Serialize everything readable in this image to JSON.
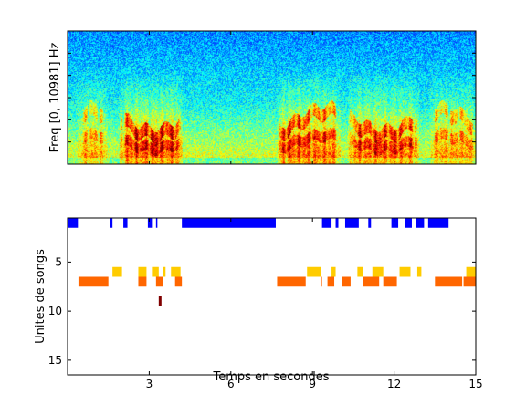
{
  "chart_data": [
    {
      "type": "heatmap",
      "ylabel": "Freq [0, 10981] Hz",
      "xlim": [
        0,
        15
      ],
      "colormap": "jet",
      "energy_bursts": [
        {
          "start": 0.35,
          "end": 1.45,
          "level": 0.55
        },
        {
          "start": 1.9,
          "end": 4.2,
          "level": 0.85
        },
        {
          "start": 7.7,
          "end": 10.0,
          "level": 0.85
        },
        {
          "start": 10.3,
          "end": 12.9,
          "level": 0.75
        },
        {
          "start": 13.3,
          "end": 15.0,
          "level": 0.6
        }
      ]
    },
    {
      "type": "timeline",
      "xlabel": "Temps en secondes",
      "ylabel": "Unites de songs",
      "xlim": [
        0,
        15
      ],
      "ylim": [
        0.5,
        16.5
      ],
      "xticks": [
        3,
        6,
        9,
        12,
        15
      ],
      "yticks": [
        5,
        10,
        15
      ],
      "unit_colors": {
        "1": "#0000ff",
        "6": "#ffcc00",
        "7": "#ff6600",
        "9": "#800000"
      },
      "segments": [
        {
          "unit": 1,
          "start": 0.0,
          "end": 0.38
        },
        {
          "unit": 1,
          "start": 1.55,
          "end": 1.65
        },
        {
          "unit": 1,
          "start": 2.05,
          "end": 2.2
        },
        {
          "unit": 1,
          "start": 2.95,
          "end": 3.1
        },
        {
          "unit": 1,
          "start": 3.25,
          "end": 3.3
        },
        {
          "unit": 1,
          "start": 4.2,
          "end": 7.65
        },
        {
          "unit": 1,
          "start": 9.35,
          "end": 9.7
        },
        {
          "unit": 1,
          "start": 9.85,
          "end": 9.95
        },
        {
          "unit": 1,
          "start": 10.2,
          "end": 10.7
        },
        {
          "unit": 1,
          "start": 11.05,
          "end": 11.15
        },
        {
          "unit": 1,
          "start": 11.9,
          "end": 12.15
        },
        {
          "unit": 1,
          "start": 12.4,
          "end": 12.65
        },
        {
          "unit": 1,
          "start": 12.8,
          "end": 13.1
        },
        {
          "unit": 1,
          "start": 13.25,
          "end": 14.0
        },
        {
          "unit": 6,
          "start": 1.65,
          "end": 2.0
        },
        {
          "unit": 6,
          "start": 2.6,
          "end": 2.9
        },
        {
          "unit": 6,
          "start": 3.1,
          "end": 3.35
        },
        {
          "unit": 6,
          "start": 3.5,
          "end": 3.6
        },
        {
          "unit": 6,
          "start": 3.8,
          "end": 4.15
        },
        {
          "unit": 6,
          "start": 8.8,
          "end": 9.3
        },
        {
          "unit": 6,
          "start": 9.7,
          "end": 9.85
        },
        {
          "unit": 6,
          "start": 10.65,
          "end": 10.85
        },
        {
          "unit": 6,
          "start": 11.2,
          "end": 11.6
        },
        {
          "unit": 6,
          "start": 12.2,
          "end": 12.6
        },
        {
          "unit": 6,
          "start": 12.85,
          "end": 13.0
        },
        {
          "unit": 6,
          "start": 14.65,
          "end": 15.0
        },
        {
          "unit": 7,
          "start": 0.4,
          "end": 1.5
        },
        {
          "unit": 7,
          "start": 2.6,
          "end": 2.9
        },
        {
          "unit": 7,
          "start": 3.25,
          "end": 3.5
        },
        {
          "unit": 7,
          "start": 3.95,
          "end": 4.2
        },
        {
          "unit": 7,
          "start": 7.7,
          "end": 8.75
        },
        {
          "unit": 7,
          "start": 9.3,
          "end": 9.35
        },
        {
          "unit": 7,
          "start": 9.55,
          "end": 9.8
        },
        {
          "unit": 7,
          "start": 10.1,
          "end": 10.4
        },
        {
          "unit": 7,
          "start": 10.85,
          "end": 11.45
        },
        {
          "unit": 7,
          "start": 11.6,
          "end": 12.1
        },
        {
          "unit": 7,
          "start": 13.5,
          "end": 14.5
        },
        {
          "unit": 7,
          "start": 14.55,
          "end": 15.0
        },
        {
          "unit": 9,
          "start": 3.35,
          "end": 3.45
        }
      ]
    }
  ]
}
